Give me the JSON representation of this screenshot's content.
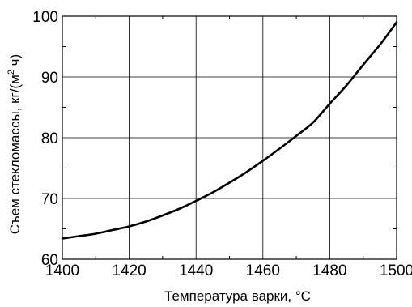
{
  "chart_data": {
    "type": "line",
    "title": "",
    "xlabel": "Температура варки, °C",
    "ylabel": {
      "before": "Съем стекломассы, кг/(м",
      "sup": "2",
      "after": " ч)"
    },
    "xlim": [
      1400,
      1500
    ],
    "ylim": [
      60,
      100
    ],
    "xticks": [
      1400,
      1420,
      1440,
      1460,
      1480,
      1500
    ],
    "yticks": [
      60,
      70,
      80,
      90,
      100
    ],
    "grid": true,
    "legend": "none",
    "line_color": "#000000",
    "series": [
      {
        "x": [
          1400,
          1405,
          1410,
          1415,
          1420,
          1425,
          1430,
          1435,
          1440,
          1445,
          1450,
          1455,
          1460,
          1465,
          1470,
          1475,
          1480,
          1485,
          1490,
          1495,
          1500
        ],
        "y": [
          63.4,
          63.8,
          64.2,
          64.8,
          65.4,
          66.2,
          67.2,
          68.3,
          69.6,
          71.0,
          72.6,
          74.3,
          76.2,
          78.2,
          80.3,
          82.5,
          85.6,
          88.6,
          92.0,
          95.3,
          99.0
        ]
      }
    ]
  }
}
